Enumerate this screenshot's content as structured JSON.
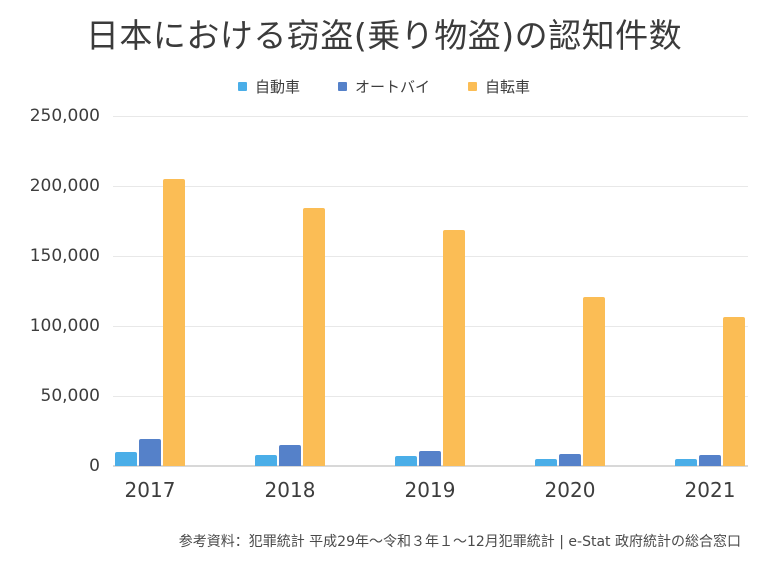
{
  "title": "日本における窃盗(乗り物盗)の認知件数",
  "footer": "参考資料：犯罪統計 平成29年～令和３年１～12月犯罪統計 | e-Stat 政府統計の総合窓口",
  "colors": {
    "car": "#4AAEE8",
    "motorcycle": "#5581C9",
    "bicycle": "#FBBD55",
    "grid": "#e8e8e8",
    "axis_line": "#d8d8d8",
    "title_text": "#3b3b3b",
    "axis_text": "#3d3d3d",
    "footer_text": "#4a4a4a"
  },
  "chart_data": {
    "type": "bar",
    "title": "日本における窃盗(乗り物盗)の認知件数",
    "categories": [
      "2017",
      "2018",
      "2019",
      "2020",
      "2021"
    ],
    "series": [
      {
        "name": "自動車",
        "color": "#4AAEE8",
        "values": [
          10000,
          8000,
          7000,
          5200,
          5000
        ]
      },
      {
        "name": "オートバイ",
        "color": "#5581C9",
        "values": [
          19000,
          15000,
          11000,
          8700,
          7500
        ]
      },
      {
        "name": "自転車",
        "color": "#FBBD55",
        "values": [
          205000,
          184000,
          168500,
          120500,
          106500
        ]
      }
    ],
    "xlabel": "",
    "ylabel": "",
    "ylim": [
      0,
      250000
    ],
    "y_tick_interval": 50000,
    "y_tick_labels": [
      "0",
      "50,000",
      "100,000",
      "150,000",
      "200,000",
      "250,000"
    ],
    "grid": true,
    "legend_position": "top",
    "source_note": "参考資料：犯罪統計 平成29年～令和３年１～12月犯罪統計 | e-Stat 政府統計の総合窓口"
  }
}
